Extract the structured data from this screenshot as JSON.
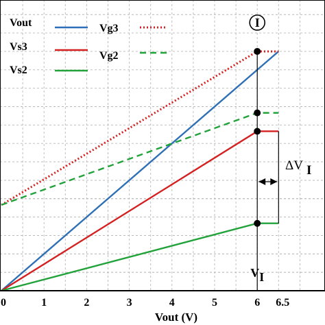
{
  "colors": {
    "blue": "#2e6fb5",
    "red": "#d42020",
    "green": "#22a23a",
    "dotted_red": "#d42020",
    "dashed_green": "#22a23a"
  },
  "chart_data": {
    "type": "line",
    "xlabel": "Vout (V)",
    "x_ticks": [
      "0",
      "1",
      "2",
      "3",
      "4",
      "5",
      "6",
      "6.5"
    ],
    "xlim": [
      0,
      6.5
    ],
    "ylim": [
      0,
      6.5
    ],
    "grid": true,
    "legend": [
      "Vout",
      "Vs3",
      "Vs2",
      "Vg3",
      "Vg2"
    ],
    "series": [
      {
        "name": "Vout",
        "style": "solid",
        "color": "#2e6fb5",
        "points": [
          [
            0,
            0
          ],
          [
            6.5,
            6.5
          ]
        ]
      },
      {
        "name": "Vs3",
        "style": "solid",
        "color": "#d42020",
        "points": [
          [
            0,
            0
          ],
          [
            6,
            4.33
          ],
          [
            6.5,
            4.33
          ]
        ]
      },
      {
        "name": "Vs2",
        "style": "solid",
        "color": "#22a23a",
        "points": [
          [
            0,
            0
          ],
          [
            6,
            1.83
          ],
          [
            6.5,
            1.83
          ]
        ]
      },
      {
        "name": "Vg3",
        "style": "dotted",
        "color": "#d42020",
        "points": [
          [
            0,
            2.33
          ],
          [
            6,
            6.5
          ],
          [
            6.5,
            6.5
          ]
        ]
      },
      {
        "name": "Vg2",
        "style": "dashed",
        "color": "#22a23a",
        "points": [
          [
            0,
            2.33
          ],
          [
            6,
            4.83
          ],
          [
            6.5,
            4.83
          ]
        ]
      }
    ],
    "annotations": {
      "circled_label": "I",
      "delta_label_main": "ΔV",
      "delta_label_sub": "I",
      "vi_main": "V",
      "vi_sub": "I",
      "vi_x": 6,
      "markers_y": [
        6.5,
        4.83,
        4.33,
        1.83
      ],
      "delta_range": [
        4.33,
        1.83
      ]
    }
  }
}
